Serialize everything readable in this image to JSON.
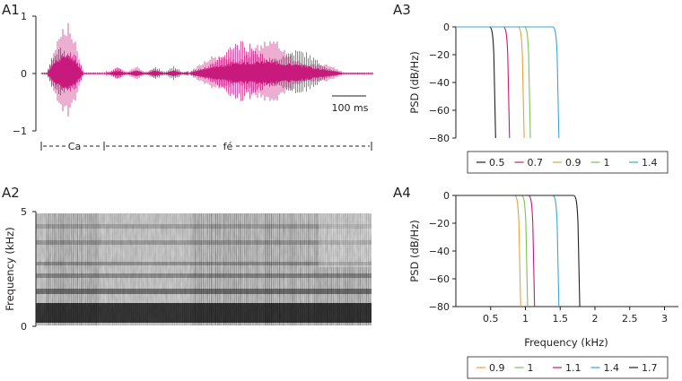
{
  "chart_data": [
    {
      "panel": "A1",
      "type": "line",
      "title": "",
      "description": "waveform",
      "yticks": [
        "1",
        "0",
        "−1"
      ],
      "ylim": [
        -1,
        1
      ],
      "scale_bar_label": "100 ms",
      "segments": [
        {
          "label": "Ca"
        },
        {
          "label": "fé"
        }
      ],
      "color": "#c8197c"
    },
    {
      "panel": "A2",
      "type": "heatmap",
      "ylabel": "Frequency (kHz)",
      "yticks": [
        "5",
        "0"
      ],
      "ylim": [
        0,
        5
      ]
    },
    {
      "panel": "A3",
      "type": "line",
      "ylabel": "PSD (dB/Hz)",
      "yticks": [
        "0",
        "−20",
        "−40",
        "−60",
        "−80"
      ],
      "ylim": [
        -80,
        0
      ],
      "xlim": [
        0,
        3.2
      ],
      "series": [
        {
          "name": "0.5",
          "cutoff_khz": 0.52,
          "color": "#231f20"
        },
        {
          "name": "0.7",
          "cutoff_khz": 0.72,
          "color": "#c8197c"
        },
        {
          "name": "0.9",
          "cutoff_khz": 0.93,
          "color": "#e8a33a"
        },
        {
          "name": "1",
          "cutoff_khz": 1.02,
          "color": "#7cc35a"
        },
        {
          "name": "1.4",
          "cutoff_khz": 1.43,
          "color": "#3aa7d6"
        }
      ]
    },
    {
      "panel": "A4",
      "type": "line",
      "xlabel": "Frequency (kHz)",
      "ylabel": "PSD (dB/Hz)",
      "yticks": [
        "0",
        "−20",
        "−40",
        "−60",
        "−80"
      ],
      "xticks": [
        "0.5",
        "1",
        "1.5",
        "2",
        "2.5",
        "3"
      ],
      "xtick_values": [
        0.5,
        1,
        1.5,
        2,
        2.5,
        3
      ],
      "ylim": [
        -80,
        0
      ],
      "xlim": [
        0,
        3.2
      ],
      "series": [
        {
          "name": "0.9",
          "cutoff_khz": 0.88,
          "color": "#e8a33a"
        },
        {
          "name": "1",
          "cutoff_khz": 0.98,
          "color": "#7cc35a"
        },
        {
          "name": "1.1",
          "cutoff_khz": 1.08,
          "color": "#c8197c"
        },
        {
          "name": "1.4",
          "cutoff_khz": 1.43,
          "color": "#3aa7d6"
        },
        {
          "name": "1.7",
          "cutoff_khz": 1.73,
          "color": "#231f20"
        }
      ]
    }
  ],
  "panels": {
    "a1": "A1",
    "a2": "A2",
    "a3": "A3",
    "a4": "A4"
  }
}
